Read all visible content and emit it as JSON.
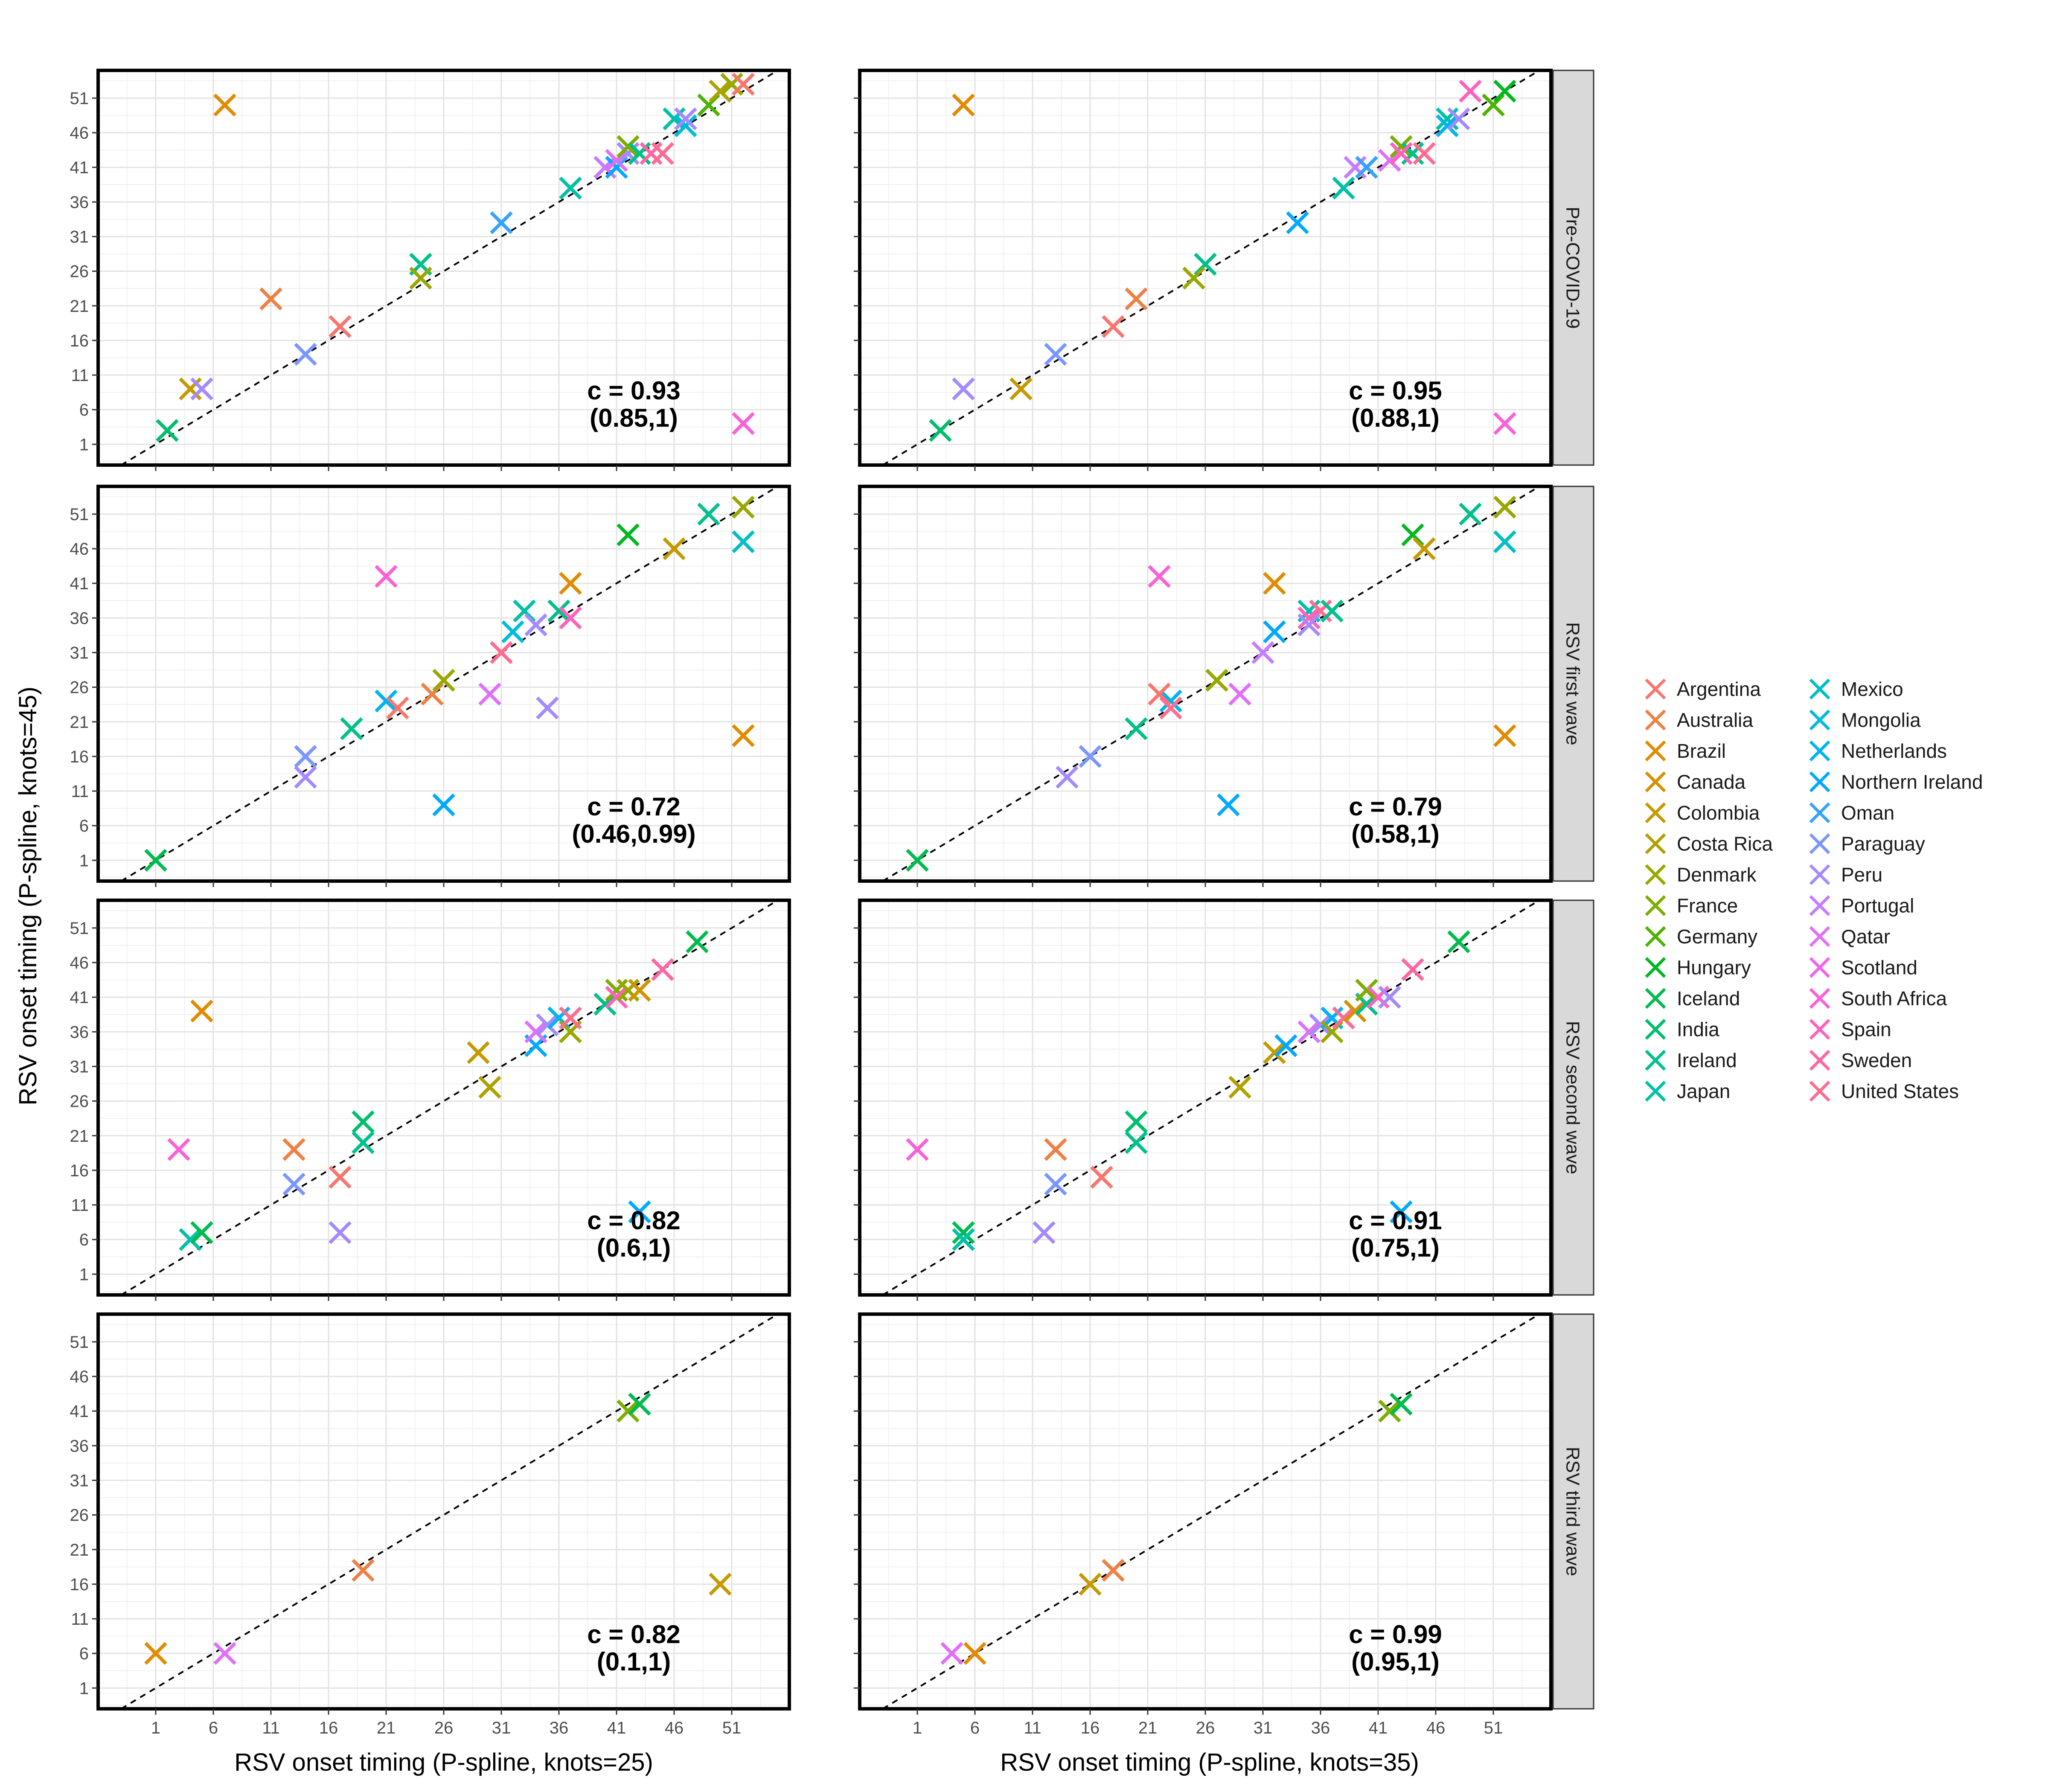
{
  "chart_data": {
    "type": "scatter",
    "x_axis_left_title": "RSV onset timing (P-spline, knots=25)",
    "x_axis_right_title": "RSV onset timing (P-spline, knots=35)",
    "y_axis_title": "RSV onset timing (P-spline, knots=45)",
    "ticks": [
      1,
      6,
      11,
      16,
      21,
      26,
      31,
      36,
      41,
      46,
      51
    ],
    "xlim": [
      -4,
      56
    ],
    "ylim": [
      -2,
      55
    ],
    "reference_line": "y = x",
    "row_labels": [
      "Pre-COVID-19",
      "RSV first wave",
      "RSV second wave",
      "RSV third wave"
    ],
    "legend_position": "right",
    "series": [
      {
        "name": "Argentina",
        "color": "#F8766D"
      },
      {
        "name": "Australia",
        "color": "#EE8043"
      },
      {
        "name": "Brazil",
        "color": "#E08B00"
      },
      {
        "name": "Canada",
        "color": "#D39200"
      },
      {
        "name": "Colombia",
        "color": "#C49A00"
      },
      {
        "name": "Costa Rica",
        "color": "#B0A100"
      },
      {
        "name": "Denmark",
        "color": "#99A800"
      },
      {
        "name": "France",
        "color": "#7CAE00"
      },
      {
        "name": "Germany",
        "color": "#4DB300"
      },
      {
        "name": "Hungary",
        "color": "#00B81F"
      },
      {
        "name": "Iceland",
        "color": "#00BB4E"
      },
      {
        "name": "India",
        "color": "#00BE6C"
      },
      {
        "name": "Ireland",
        "color": "#00C08B"
      },
      {
        "name": "Japan",
        "color": "#00C1A6"
      },
      {
        "name": "Mexico",
        "color": "#00BFC4"
      },
      {
        "name": "Mongolia",
        "color": "#00BBDB"
      },
      {
        "name": "Netherlands",
        "color": "#00B4F0"
      },
      {
        "name": "Northern Ireland",
        "color": "#00A9FF"
      },
      {
        "name": "Oman",
        "color": "#35A2FF"
      },
      {
        "name": "Paraguay",
        "color": "#7997FF"
      },
      {
        "name": "Peru",
        "color": "#A58AFF"
      },
      {
        "name": "Portugal",
        "color": "#C77CFF"
      },
      {
        "name": "Qatar",
        "color": "#DF70F8"
      },
      {
        "name": "Scotland",
        "color": "#F066EA"
      },
      {
        "name": "South Africa",
        "color": "#FB61D7"
      },
      {
        "name": "Spain",
        "color": "#FF62BC"
      },
      {
        "name": "Sweden",
        "color": "#FF67A4"
      },
      {
        "name": "United States",
        "color": "#FF6C90"
      }
    ],
    "panels": [
      {
        "row": 0,
        "col": 0,
        "stat": "c = 0.93",
        "ci": "(0.85,1)",
        "points": [
          [
            7,
            50,
            "#E08B00"
          ],
          [
            4,
            9,
            "#C49A00"
          ],
          [
            5,
            9,
            "#A58AFF"
          ],
          [
            2,
            3,
            "#00BE6C"
          ],
          [
            11,
            22,
            "#EE8043"
          ],
          [
            17,
            18,
            "#F8766D"
          ],
          [
            14,
            14,
            "#7997FF"
          ],
          [
            24,
            27,
            "#00C08B"
          ],
          [
            24,
            25,
            "#99A800"
          ],
          [
            31,
            33,
            "#35A2FF"
          ],
          [
            37,
            38,
            "#00C1A6"
          ],
          [
            40,
            41,
            "#C77CFF"
          ],
          [
            41,
            41,
            "#00A9FF"
          ],
          [
            41,
            42,
            "#DF70F8"
          ],
          [
            42,
            43,
            "#A58AFF"
          ],
          [
            42,
            44,
            "#7CAE00"
          ],
          [
            43,
            43,
            "#00C08B"
          ],
          [
            44,
            43,
            "#FF67A4"
          ],
          [
            45,
            43,
            "#FF6C90"
          ],
          [
            46,
            48,
            "#00B4F0"
          ],
          [
            46,
            48,
            "#00C1A6"
          ],
          [
            47,
            47,
            "#00BBDB"
          ],
          [
            47,
            48,
            "#A58AFF"
          ],
          [
            49,
            50,
            "#4DB300"
          ],
          [
            50,
            52,
            "#B0A100"
          ],
          [
            51,
            53,
            "#99A800"
          ],
          [
            52,
            53,
            "#FF62BC"
          ],
          [
            52,
            53,
            "#F8766D"
          ],
          [
            52,
            4,
            "#FB61D7"
          ]
        ]
      },
      {
        "row": 0,
        "col": 1,
        "stat": "c = 0.95",
        "ci": "(0.88,1)",
        "points": [
          [
            5,
            50,
            "#E08B00"
          ],
          [
            5,
            9,
            "#A58AFF"
          ],
          [
            10,
            9,
            "#C49A00"
          ],
          [
            3,
            3,
            "#00BE6C"
          ],
          [
            20,
            22,
            "#EE8043"
          ],
          [
            18,
            18,
            "#F8766D"
          ],
          [
            13,
            14,
            "#7997FF"
          ],
          [
            26,
            27,
            "#00C08B"
          ],
          [
            25,
            25,
            "#99A800"
          ],
          [
            34,
            33,
            "#00A9FF"
          ],
          [
            38,
            38,
            "#00C1A6"
          ],
          [
            39,
            41,
            "#C77CFF"
          ],
          [
            40,
            41,
            "#35A2FF"
          ],
          [
            42,
            42,
            "#DF70F8"
          ],
          [
            43,
            44,
            "#7CAE00"
          ],
          [
            44,
            43,
            "#00C08B"
          ],
          [
            43,
            43,
            "#FF62BC"
          ],
          [
            45,
            43,
            "#FF6C90"
          ],
          [
            47,
            48,
            "#00C1A6"
          ],
          [
            47,
            47,
            "#00B4F0"
          ],
          [
            48,
            48,
            "#A58AFF"
          ],
          [
            51,
            50,
            "#4DB300"
          ],
          [
            52,
            52,
            "#00B81F"
          ],
          [
            49,
            52,
            "#FF62BC"
          ],
          [
            52,
            4,
            "#FB61D7"
          ]
        ]
      },
      {
        "row": 1,
        "col": 0,
        "stat": "c = 0.72",
        "ci": "(0.46,0.99)",
        "points": [
          [
            1,
            1,
            "#00BB4E"
          ],
          [
            14,
            16,
            "#7997FF"
          ],
          [
            14,
            13,
            "#A58AFF"
          ],
          [
            18,
            20,
            "#00C08B"
          ],
          [
            21,
            24,
            "#00B4F0"
          ],
          [
            22,
            23,
            "#F8766D"
          ],
          [
            25,
            25,
            "#EE8043"
          ],
          [
            26,
            27,
            "#99A800"
          ],
          [
            26,
            9,
            "#00A9FF"
          ],
          [
            21,
            42,
            "#FB61D7"
          ],
          [
            30,
            25,
            "#DF70F8"
          ],
          [
            31,
            31,
            "#C77CFF"
          ],
          [
            31,
            31,
            "#FF6C90"
          ],
          [
            32,
            34,
            "#00BBDB"
          ],
          [
            33,
            37,
            "#00C1A6"
          ],
          [
            34,
            35,
            "#A58AFF"
          ],
          [
            35,
            23,
            "#A58AFF"
          ],
          [
            36,
            37,
            "#00C08B"
          ],
          [
            37,
            41,
            "#E08B00"
          ],
          [
            37,
            36,
            "#FF62BC"
          ],
          [
            42,
            48,
            "#00B81F"
          ],
          [
            46,
            46,
            "#C49A00"
          ],
          [
            49,
            51,
            "#00C08B"
          ],
          [
            52,
            52,
            "#99A800"
          ],
          [
            52,
            47,
            "#00BFC4"
          ],
          [
            52,
            19,
            "#E08B00"
          ]
        ]
      },
      {
        "row": 1,
        "col": 1,
        "stat": "c = 0.79",
        "ci": "(0.58,1)",
        "points": [
          [
            1,
            1,
            "#00BB4E"
          ],
          [
            16,
            16,
            "#7997FF"
          ],
          [
            14,
            13,
            "#A58AFF"
          ],
          [
            20,
            20,
            "#00C08B"
          ],
          [
            23,
            24,
            "#00B4F0"
          ],
          [
            22,
            25,
            "#F8766D"
          ],
          [
            23,
            23,
            "#FF6C90"
          ],
          [
            27,
            27,
            "#99A800"
          ],
          [
            28,
            9,
            "#00A9FF"
          ],
          [
            22,
            42,
            "#FB61D7"
          ],
          [
            29,
            25,
            "#DF70F8"
          ],
          [
            31,
            31,
            "#C77CFF"
          ],
          [
            32,
            34,
            "#00A9FF"
          ],
          [
            32,
            41,
            "#E08B00"
          ],
          [
            35,
            37,
            "#00C1A6"
          ],
          [
            35,
            36,
            "#FF62BC"
          ],
          [
            36,
            37,
            "#FF6C90"
          ],
          [
            35,
            35,
            "#A58AFF"
          ],
          [
            37,
            37,
            "#00C08B"
          ],
          [
            44,
            48,
            "#00B81F"
          ],
          [
            45,
            46,
            "#C49A00"
          ],
          [
            49,
            51,
            "#00C08B"
          ],
          [
            52,
            52,
            "#99A800"
          ],
          [
            52,
            47,
            "#00BFC4"
          ],
          [
            52,
            19,
            "#E08B00"
          ]
        ]
      },
      {
        "row": 2,
        "col": 0,
        "stat": "c = 0.82",
        "ci": "(0.6,1)",
        "points": [
          [
            5,
            39,
            "#E08B00"
          ],
          [
            3,
            19,
            "#FB61D7"
          ],
          [
            4,
            6,
            "#00C1A6"
          ],
          [
            5,
            7,
            "#00BB4E"
          ],
          [
            13,
            19,
            "#EE8043"
          ],
          [
            13,
            14,
            "#7997FF"
          ],
          [
            17,
            15,
            "#F8766D"
          ],
          [
            17,
            7,
            "#A58AFF"
          ],
          [
            19,
            23,
            "#00BE6C"
          ],
          [
            19,
            20,
            "#00C08B"
          ],
          [
            29,
            33,
            "#C49A00"
          ],
          [
            30,
            28,
            "#B0A100"
          ],
          [
            34,
            34,
            "#00A9FF"
          ],
          [
            34,
            36,
            "#DF70F8"
          ],
          [
            35,
            37,
            "#A58AFF"
          ],
          [
            36,
            38,
            "#00B4F0"
          ],
          [
            37,
            36,
            "#99A800"
          ],
          [
            37,
            38,
            "#FF6C90"
          ],
          [
            40,
            40,
            "#00C08B"
          ],
          [
            41,
            42,
            "#7CAE00"
          ],
          [
            41,
            41,
            "#FF62BC"
          ],
          [
            42,
            42,
            "#99A800"
          ],
          [
            43,
            42,
            "#D39200"
          ],
          [
            43,
            10,
            "#00A9FF"
          ],
          [
            45,
            45,
            "#FF67A4"
          ],
          [
            48,
            49,
            "#00BB4E"
          ]
        ]
      },
      {
        "row": 2,
        "col": 1,
        "stat": "c = 0.91",
        "ci": "(0.75,1)",
        "points": [
          [
            1,
            19,
            "#FB61D7"
          ],
          [
            5,
            7,
            "#00BB4E"
          ],
          [
            5,
            6,
            "#00C1A6"
          ],
          [
            12,
            7,
            "#A58AFF"
          ],
          [
            13,
            19,
            "#EE8043"
          ],
          [
            13,
            14,
            "#7997FF"
          ],
          [
            17,
            15,
            "#F8766D"
          ],
          [
            20,
            23,
            "#00BE6C"
          ],
          [
            20,
            20,
            "#00C08B"
          ],
          [
            29,
            28,
            "#B0A100"
          ],
          [
            32,
            33,
            "#C49A00"
          ],
          [
            33,
            34,
            "#00A9FF"
          ],
          [
            35,
            36,
            "#DF70F8"
          ],
          [
            36,
            37,
            "#A58AFF"
          ],
          [
            37,
            38,
            "#00B4F0"
          ],
          [
            37,
            36,
            "#99A800"
          ],
          [
            38,
            38,
            "#FF6C90"
          ],
          [
            39,
            39,
            "#D39200"
          ],
          [
            40,
            40,
            "#00C08B"
          ],
          [
            40,
            42,
            "#7CAE00"
          ],
          [
            41,
            41,
            "#FF62BC"
          ],
          [
            42,
            41,
            "#A58AFF"
          ],
          [
            43,
            10,
            "#00A9FF"
          ],
          [
            44,
            45,
            "#FF67A4"
          ],
          [
            48,
            49,
            "#00BB4E"
          ]
        ]
      },
      {
        "row": 3,
        "col": 0,
        "stat": "c = 0.82",
        "ci": "(0.1,1)",
        "points": [
          [
            1,
            6,
            "#E08B00"
          ],
          [
            7,
            6,
            "#DF70F8"
          ],
          [
            19,
            18,
            "#EE8043"
          ],
          [
            42,
            41,
            "#7CAE00"
          ],
          [
            43,
            42,
            "#00BB4E"
          ],
          [
            50,
            16,
            "#C49A00"
          ]
        ]
      },
      {
        "row": 3,
        "col": 1,
        "stat": "c = 0.99",
        "ci": "(0.95,1)",
        "points": [
          [
            4,
            6,
            "#DF70F8"
          ],
          [
            6,
            6,
            "#E08B00"
          ],
          [
            16,
            16,
            "#C49A00"
          ],
          [
            18,
            18,
            "#EE8043"
          ],
          [
            42,
            41,
            "#7CAE00"
          ],
          [
            43,
            42,
            "#00BB4E"
          ]
        ]
      }
    ]
  }
}
